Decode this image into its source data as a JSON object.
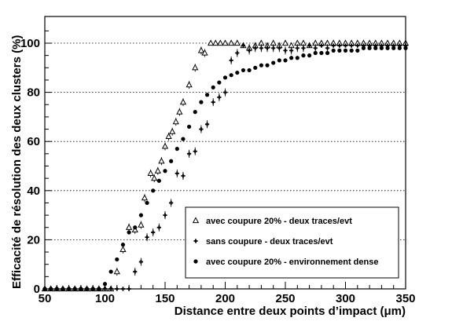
{
  "chart_data": {
    "type": "scatter",
    "xlabel": "Distance entre deux points d’impact (μm)",
    "ylabel": "Efficacité de résolution des deux clusters (%)",
    "xlim": [
      50,
      350
    ],
    "ylim": [
      0,
      105
    ],
    "x_ticks": [
      50,
      100,
      150,
      200,
      250,
      300,
      350
    ],
    "y_ticks": [
      0,
      20,
      40,
      60,
      80,
      100
    ],
    "grid": "horizontal dotted lines at y ticks",
    "legend_placement": "lower-right, boxed",
    "series": [
      {
        "name": "avec coupure  20%  - deux traces/evt",
        "marker": "open-triangle",
        "points": [
          [
            50,
            0
          ],
          [
            55,
            0
          ],
          [
            60,
            0
          ],
          [
            65,
            0
          ],
          [
            70,
            0
          ],
          [
            75,
            0
          ],
          [
            80,
            0
          ],
          [
            85,
            0
          ],
          [
            90,
            0
          ],
          [
            95,
            0
          ],
          [
            100,
            0
          ],
          [
            105,
            0
          ],
          [
            110,
            7
          ],
          [
            115,
            16
          ],
          [
            120,
            25
          ],
          [
            125,
            24
          ],
          [
            130,
            26
          ],
          [
            133,
            37
          ],
          [
            138,
            47
          ],
          [
            141,
            45
          ],
          [
            144,
            48
          ],
          [
            147,
            52
          ],
          [
            150,
            58
          ],
          [
            153,
            62
          ],
          [
            156,
            64
          ],
          [
            159,
            68
          ],
          [
            162,
            72
          ],
          [
            165,
            76
          ],
          [
            170,
            83
          ],
          [
            175,
            90
          ],
          [
            180,
            97
          ],
          [
            183,
            96
          ],
          [
            188,
            100
          ],
          [
            192,
            100
          ],
          [
            196,
            100
          ],
          [
            200,
            100
          ],
          [
            205,
            100
          ],
          [
            210,
            100
          ],
          [
            215,
            99
          ],
          [
            220,
            98
          ],
          [
            225,
            99
          ],
          [
            230,
            100
          ],
          [
            235,
            99
          ],
          [
            240,
            100
          ],
          [
            245,
            99
          ],
          [
            250,
            100
          ],
          [
            255,
            99
          ],
          [
            260,
            100
          ],
          [
            265,
            100
          ],
          [
            270,
            99
          ],
          [
            275,
            100
          ],
          [
            280,
            100
          ],
          [
            285,
            100
          ],
          [
            290,
            100
          ],
          [
            295,
            100
          ],
          [
            300,
            100
          ],
          [
            305,
            100
          ],
          [
            310,
            100
          ],
          [
            315,
            100
          ],
          [
            320,
            100
          ],
          [
            325,
            100
          ],
          [
            330,
            100
          ],
          [
            335,
            100
          ],
          [
            340,
            100
          ],
          [
            345,
            100
          ],
          [
            350,
            100
          ]
        ]
      },
      {
        "name": "sans coupure - deux traces/evt",
        "marker": "cross",
        "points": [
          [
            50,
            0
          ],
          [
            55,
            0
          ],
          [
            60,
            0
          ],
          [
            65,
            0
          ],
          [
            70,
            0
          ],
          [
            75,
            0
          ],
          [
            80,
            0
          ],
          [
            85,
            0
          ],
          [
            90,
            0
          ],
          [
            95,
            0
          ],
          [
            100,
            0
          ],
          [
            105,
            0
          ],
          [
            110,
            0
          ],
          [
            115,
            0
          ],
          [
            120,
            0
          ],
          [
            125,
            7
          ],
          [
            130,
            11
          ],
          [
            135,
            21
          ],
          [
            140,
            23
          ],
          [
            145,
            25
          ],
          [
            150,
            30
          ],
          [
            155,
            35
          ],
          [
            160,
            47
          ],
          [
            165,
            46
          ],
          [
            170,
            55
          ],
          [
            175,
            56
          ],
          [
            180,
            65
          ],
          [
            185,
            67
          ],
          [
            190,
            76
          ],
          [
            195,
            78
          ],
          [
            200,
            80
          ],
          [
            205,
            93
          ],
          [
            210,
            96
          ],
          [
            215,
            99
          ],
          [
            220,
            97
          ],
          [
            225,
            98
          ],
          [
            230,
            98
          ],
          [
            235,
            98
          ],
          [
            240,
            98
          ],
          [
            245,
            98
          ],
          [
            250,
            97
          ],
          [
            255,
            97
          ],
          [
            260,
            98
          ],
          [
            265,
            98
          ],
          [
            270,
            99
          ],
          [
            275,
            98
          ],
          [
            280,
            99
          ],
          [
            285,
            98
          ],
          [
            290,
            99
          ],
          [
            295,
            99
          ],
          [
            300,
            99
          ],
          [
            305,
            99
          ],
          [
            310,
            99
          ],
          [
            315,
            99
          ],
          [
            320,
            99
          ],
          [
            325,
            99
          ],
          [
            330,
            99
          ],
          [
            335,
            99
          ],
          [
            340,
            99
          ],
          [
            345,
            99
          ],
          [
            350,
            99
          ]
        ]
      },
      {
        "name": "avec coupure 20%  - environnement dense",
        "marker": "filled-circle",
        "points": [
          [
            50,
            0
          ],
          [
            55,
            0
          ],
          [
            60,
            0
          ],
          [
            65,
            0
          ],
          [
            70,
            0
          ],
          [
            75,
            0
          ],
          [
            80,
            0
          ],
          [
            85,
            0
          ],
          [
            90,
            0
          ],
          [
            95,
            0
          ],
          [
            100,
            2
          ],
          [
            105,
            7
          ],
          [
            110,
            12
          ],
          [
            115,
            18
          ],
          [
            120,
            23
          ],
          [
            125,
            25
          ],
          [
            130,
            30
          ],
          [
            135,
            35
          ],
          [
            140,
            40
          ],
          [
            145,
            44
          ],
          [
            150,
            48
          ],
          [
            155,
            52
          ],
          [
            160,
            57
          ],
          [
            165,
            61
          ],
          [
            170,
            66
          ],
          [
            175,
            72
          ],
          [
            180,
            76
          ],
          [
            185,
            79
          ],
          [
            190,
            82
          ],
          [
            195,
            84
          ],
          [
            200,
            86
          ],
          [
            205,
            87
          ],
          [
            210,
            88
          ],
          [
            215,
            89
          ],
          [
            220,
            89
          ],
          [
            225,
            90
          ],
          [
            230,
            91
          ],
          [
            235,
            91
          ],
          [
            240,
            92
          ],
          [
            245,
            93
          ],
          [
            250,
            93
          ],
          [
            255,
            94
          ],
          [
            260,
            94
          ],
          [
            265,
            95
          ],
          [
            270,
            95
          ],
          [
            275,
            96
          ],
          [
            280,
            96
          ],
          [
            285,
            96
          ],
          [
            290,
            97
          ],
          [
            295,
            97
          ],
          [
            300,
            97
          ],
          [
            305,
            97
          ],
          [
            310,
            97
          ],
          [
            315,
            98
          ],
          [
            320,
            98
          ],
          [
            325,
            98
          ],
          [
            330,
            98
          ],
          [
            335,
            98
          ],
          [
            340,
            98
          ],
          [
            345,
            98
          ],
          [
            350,
            98
          ]
        ]
      }
    ]
  }
}
